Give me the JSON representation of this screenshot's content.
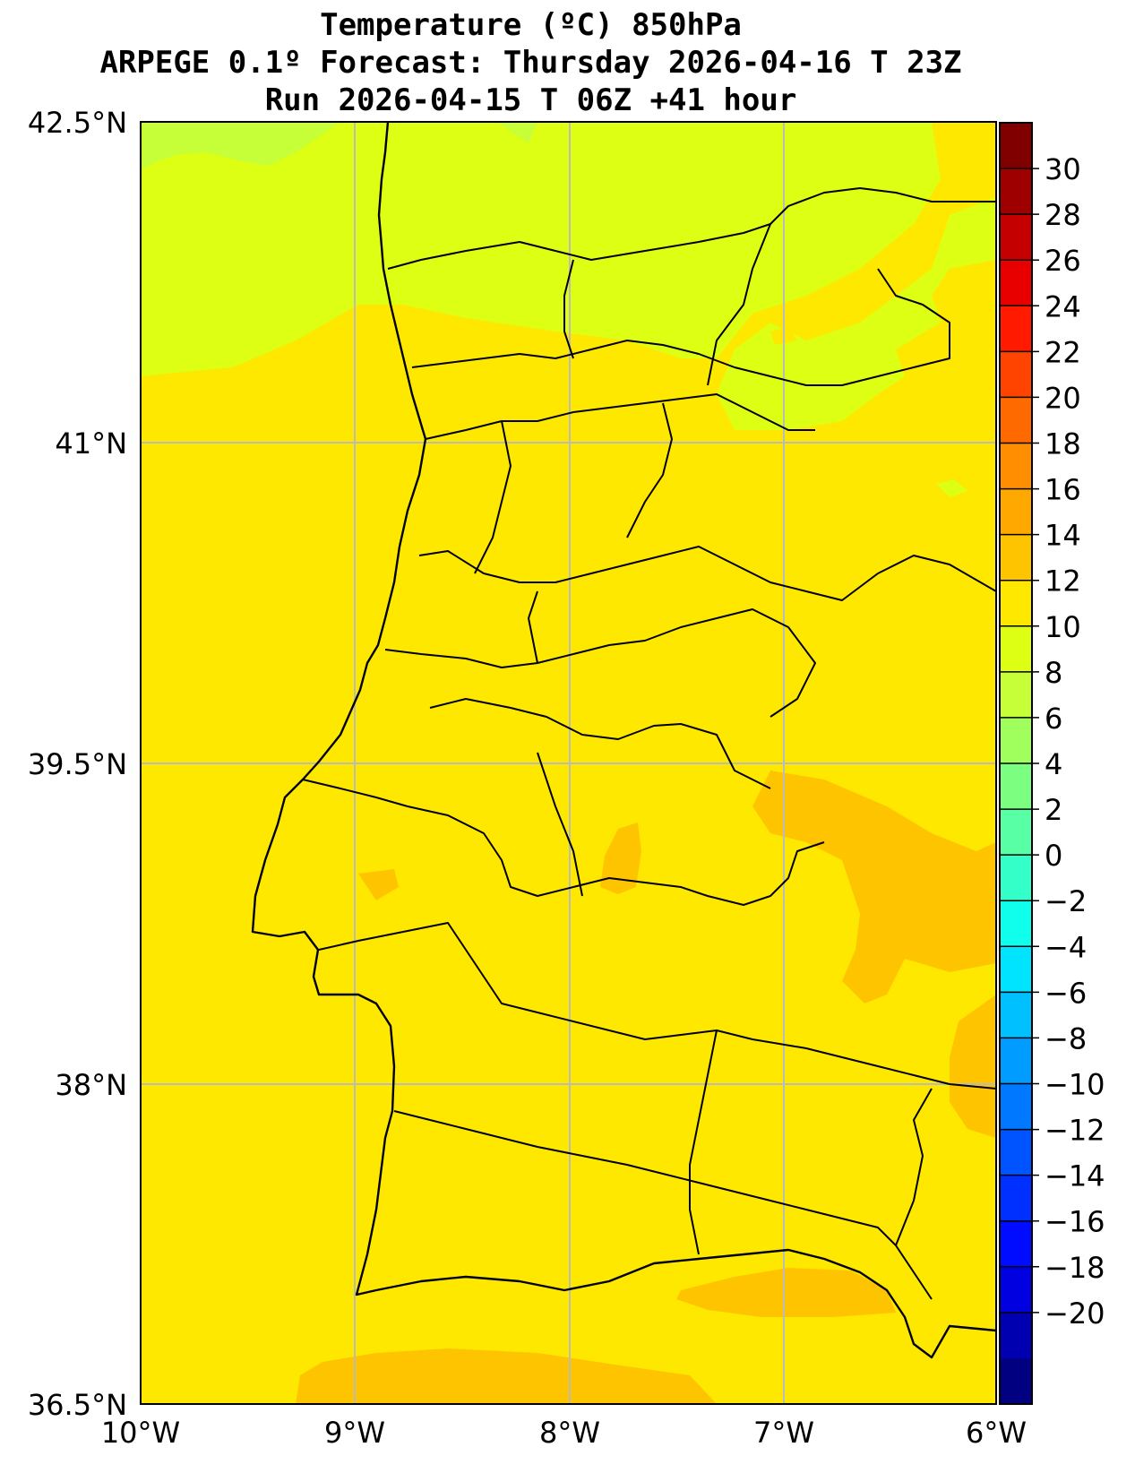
{
  "title": {
    "line1": "Temperature (ºC) 850hPa",
    "line2": "ARPEGE 0.1º Forecast: Thursday 2026-04-16 T 23Z",
    "line3": "Run 2026-04-15 T 06Z +41 hour"
  },
  "map": {
    "lon_range": [
      -10,
      -6
    ],
    "lat_range": [
      36.5,
      42.5
    ],
    "gridlines": true,
    "lat_labels": [
      "42.5°N",
      "41°N",
      "39.5°N",
      "38°N",
      "36.5°N"
    ],
    "lon_labels": [
      "10°W",
      "9°W",
      "8°W",
      "7°W",
      "6°W"
    ],
    "colors": {
      "base_12_14": "#ffe800",
      "band_10_12": "#dcff14",
      "band_8_10": "#c6ff38",
      "band_14_16": "#ffc400"
    }
  },
  "colorbar": {
    "labels": [
      "30",
      "28",
      "26",
      "24",
      "22",
      "20",
      "18",
      "16",
      "14",
      "12",
      "10",
      "8",
      "6",
      "4",
      "2",
      "0",
      "−2",
      "−4",
      "−6",
      "−8",
      "−10",
      "−12",
      "−14",
      "−16",
      "−18",
      "−20"
    ],
    "colors": [
      "#800000",
      "#9e0000",
      "#c40000",
      "#e80000",
      "#ff1a00",
      "#ff4400",
      "#ff6a00",
      "#ff8e00",
      "#ffa800",
      "#ffc400",
      "#ffe800",
      "#dcff14",
      "#c6ff38",
      "#a0ff5c",
      "#7cff80",
      "#58ffa4",
      "#34ffc8",
      "#10ffec",
      "#00e4ff",
      "#00c0ff",
      "#009cff",
      "#0078ff",
      "#0054ff",
      "#0030ff",
      "#000cff",
      "#0000e0",
      "#0000b0",
      "#000080"
    ]
  }
}
